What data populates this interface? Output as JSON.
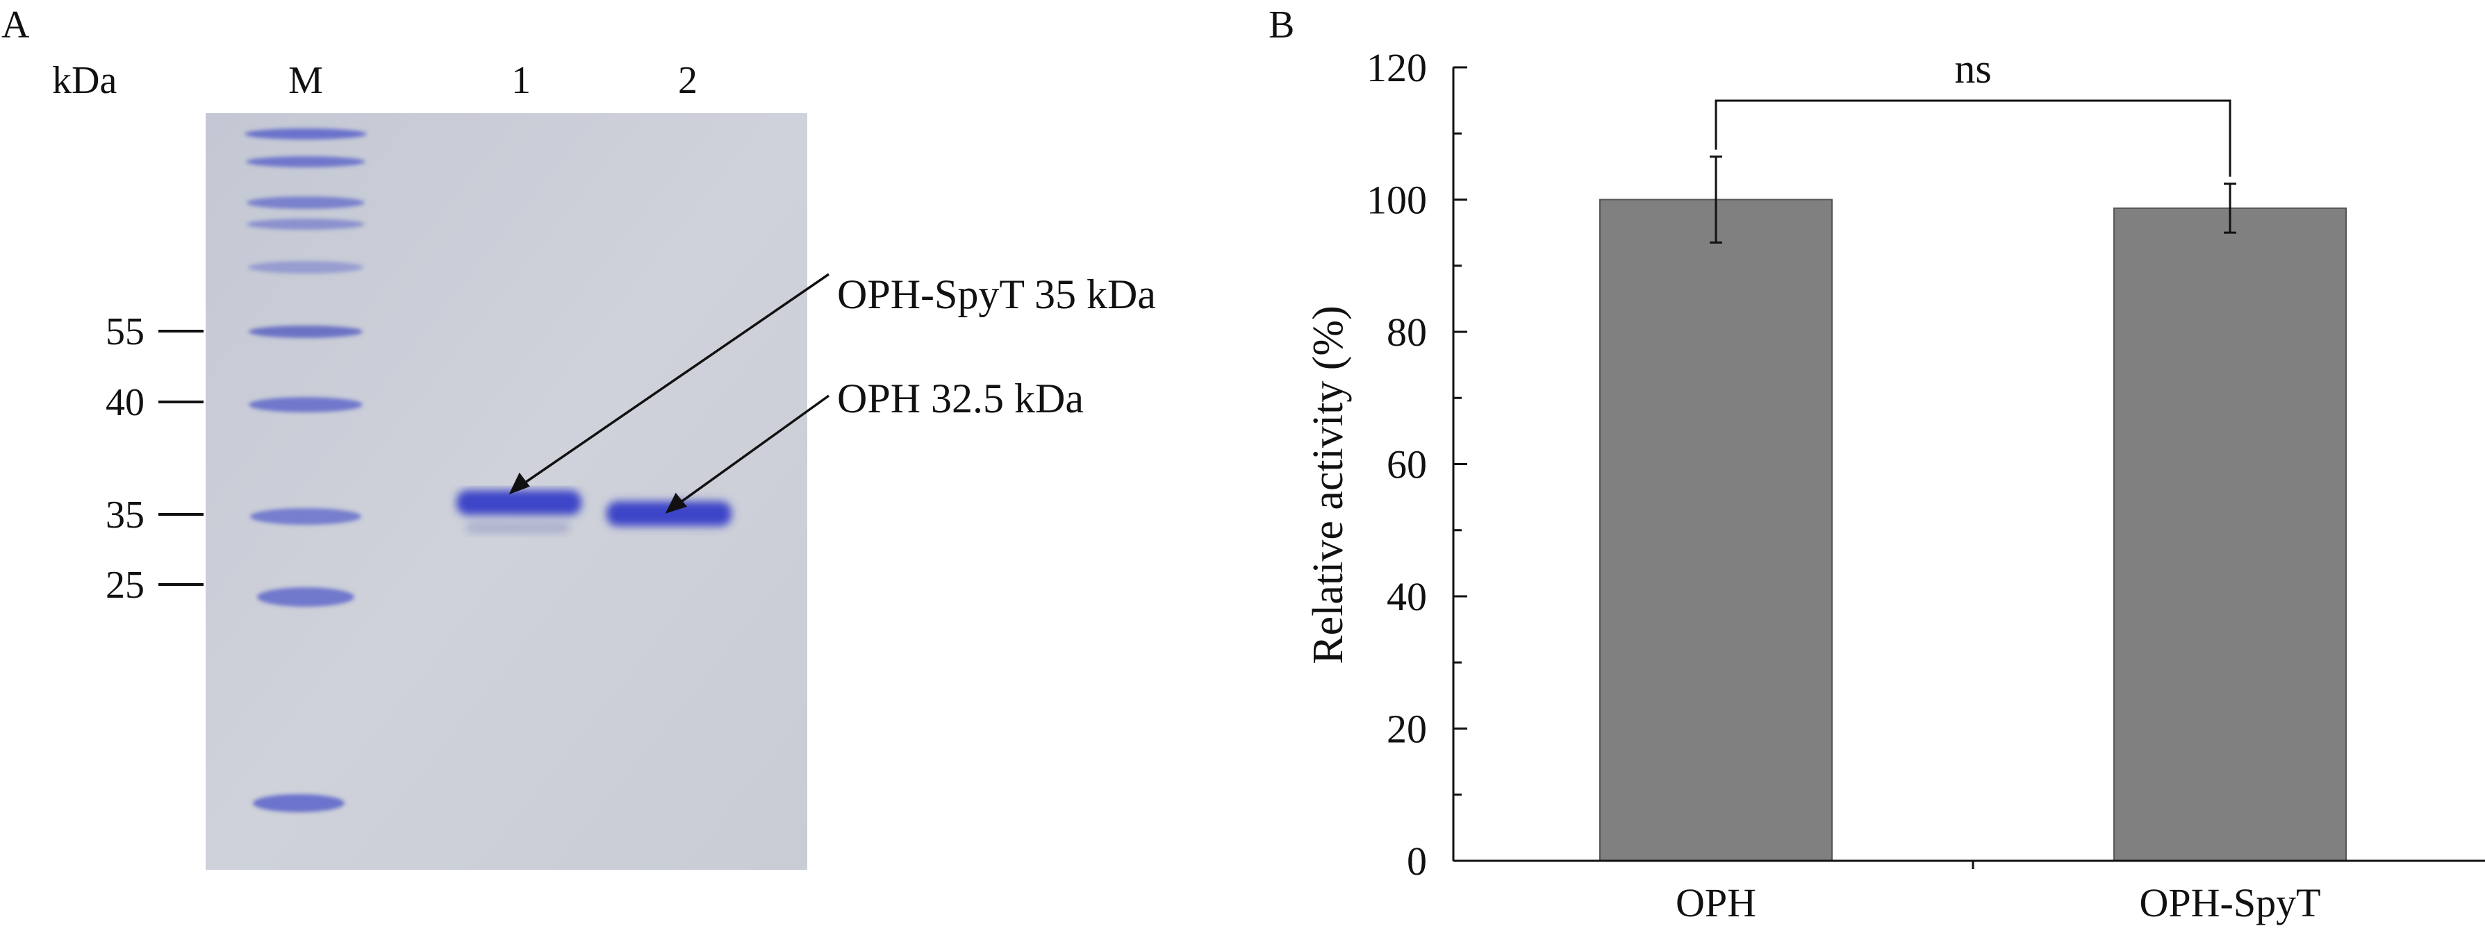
{
  "panels": {
    "a_label": "A",
    "b_label": "B"
  },
  "gel": {
    "unit_label": "kDa",
    "lanes": [
      "M",
      "1",
      "2"
    ],
    "markers": [
      {
        "label": "55",
        "value": 55
      },
      {
        "label": "40",
        "value": 40
      },
      {
        "label": "35",
        "value": 35
      },
      {
        "label": "25",
        "value": 25
      }
    ],
    "annotations": [
      {
        "text": "OPH-SpyT 35 kDa",
        "lane": "1"
      },
      {
        "text": "OPH 32.5 kDa",
        "lane": "2"
      }
    ],
    "colors": {
      "background": "#c8ccd6",
      "band": "#3c45c8",
      "ladder": "#5a63c9"
    }
  },
  "chart_data": {
    "type": "bar",
    "title": "",
    "xlabel": "",
    "ylabel": "Relative activity (%)",
    "categories": [
      "OPH",
      "OPH-SpyT"
    ],
    "values": [
      100,
      98.7
    ],
    "error": [
      6.5,
      3.7
    ],
    "ylim": [
      0,
      120
    ],
    "yticks": [
      0,
      20,
      40,
      60,
      80,
      100,
      120
    ],
    "significance": {
      "label": "ns",
      "between": [
        "OPH",
        "OPH-SpyT"
      ]
    },
    "bar_color": "#808080",
    "grid": false
  }
}
